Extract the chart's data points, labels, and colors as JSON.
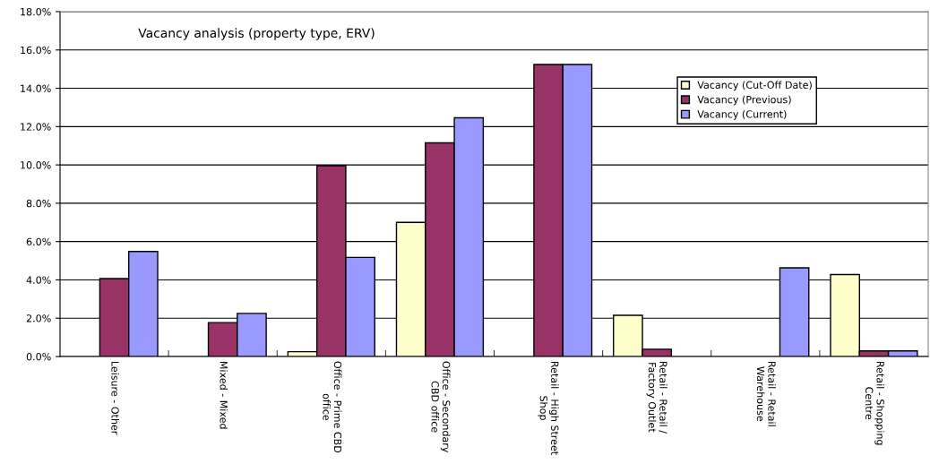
{
  "chart_data": {
    "type": "bar",
    "title": "Vacancy analysis (property type, ERV)",
    "categories": [
      "Leisure - Other",
      "Mixed - Mixed",
      "Office - Prime CBD\noffice",
      "Office - Secondary\nCBD office",
      "Retail - High Street\nShop",
      "Retail - Retail /\nFactory Outlet",
      "Retail - Retail\nWarehouse",
      "Retail - Shopping\nCentre"
    ],
    "series": [
      {
        "name": "Vacancy (Cut-Off Date)",
        "color": "#ffffcc",
        "values": [
          null,
          null,
          0.25,
          7.0,
          null,
          2.15,
          null,
          4.28
        ]
      },
      {
        "name": "Vacancy (Previous)",
        "color": "#993366",
        "values": [
          4.07,
          1.77,
          9.96,
          11.15,
          15.24,
          0.38,
          null,
          0.29
        ]
      },
      {
        "name": "Vacancy (Current)",
        "color": "#9999ff",
        "values": [
          5.48,
          2.25,
          5.17,
          12.46,
          15.24,
          null,
          4.63,
          0.29
        ]
      }
    ],
    "ylim": [
      0,
      18
    ],
    "yticks": [
      {
        "value": 0,
        "label": "0.0%"
      },
      {
        "value": 2,
        "label": "2.0%"
      },
      {
        "value": 4,
        "label": "4.0%"
      },
      {
        "value": 6,
        "label": "6.0%"
      },
      {
        "value": 8,
        "label": "8.0%"
      },
      {
        "value": 10,
        "label": "10.0%"
      },
      {
        "value": 12,
        "label": "12.0%"
      },
      {
        "value": 14,
        "label": "14.0%"
      },
      {
        "value": 16,
        "label": "16.0%"
      },
      {
        "value": 18,
        "label": "18.0%"
      }
    ],
    "grid": "y",
    "legend": "top right"
  }
}
